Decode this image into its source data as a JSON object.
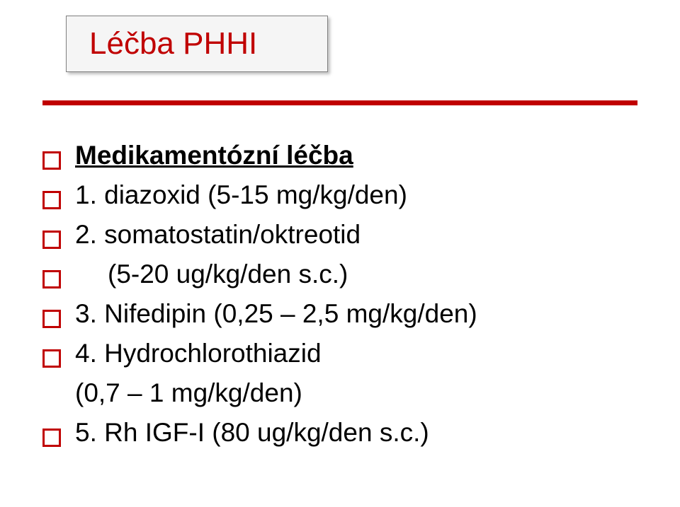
{
  "title": "Léčba PHHI",
  "heading": "Medikamentózní léčba",
  "items": [
    {
      "text": "1. diazoxid (5-15 mg/kg/den)"
    },
    {
      "text": "2. somatostatin/oktreotid"
    },
    {
      "text": "(5-20 ug/kg/den s.c.)",
      "indent": true
    },
    {
      "text": "3. Nifedipin (0,25 – 2,5 mg/kg/den)"
    },
    {
      "text": "4. Hydrochlorothiazid"
    },
    {
      "text": "(0,7 – 1 mg/kg/den)",
      "nobullet": true
    },
    {
      "text": "5. Rh IGF-I (80 ug/kg/den s.c.)"
    }
  ],
  "colors": {
    "accent": "#c00000",
    "text": "#000000",
    "box_bg": "#f5f5f5",
    "box_border": "#808080",
    "background": "#ffffff"
  },
  "fonts": {
    "title_size": 44,
    "body_size": 37
  }
}
